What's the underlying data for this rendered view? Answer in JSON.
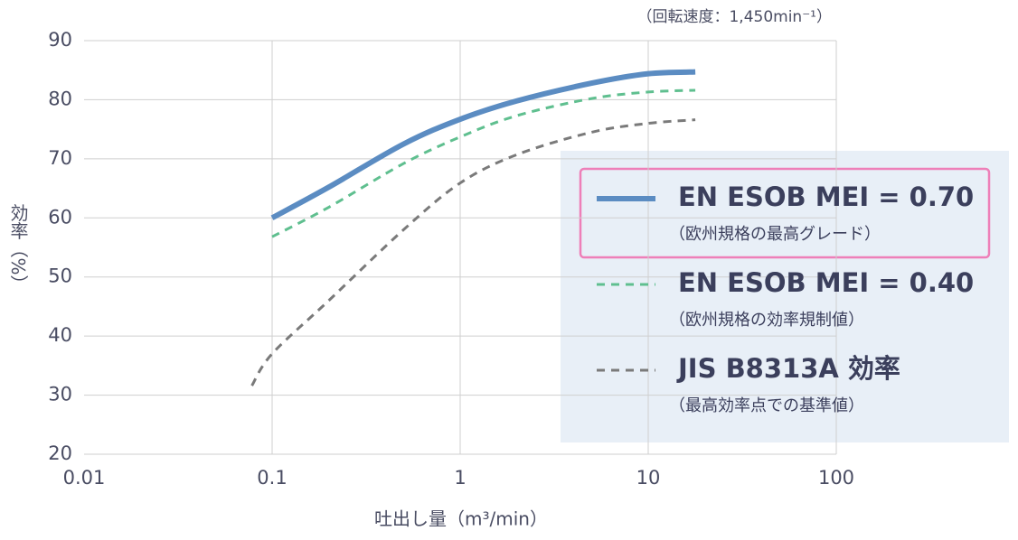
{
  "chart_data": {
    "type": "line",
    "annotation": "（回転速度：1,450min⁻¹）",
    "xlabel": "吐出し量（m³/min）",
    "ylabel": "効率（%）",
    "log_x": true,
    "grid": true,
    "xlim": [
      0.01,
      100
    ],
    "xticks": [
      0.01,
      0.1,
      1,
      10,
      100
    ],
    "ylim": [
      20,
      90
    ],
    "yticks": [
      20,
      30,
      40,
      50,
      60,
      70,
      80,
      90
    ],
    "legend": "right",
    "series": [
      {
        "name": "EN ESOB MEI = 0.70",
        "description": "（欧州規格の最高グレード）",
        "color": "#5b8cc2",
        "style": "solid",
        "width": 6,
        "x": [
          0.1,
          0.2,
          0.5,
          1,
          2,
          5,
          10,
          17.8
        ],
        "values": [
          60,
          65.2,
          72.5,
          76.7,
          79.8,
          82.8,
          84.4,
          84.7
        ]
      },
      {
        "name": "EN ESOB MEI = 0.40",
        "description": "（欧州規格の効率規制値）",
        "color": "#5fbf8f",
        "style": "dashed",
        "width": 3,
        "x": [
          0.1,
          0.2,
          0.5,
          1,
          2,
          5,
          10,
          17.8
        ],
        "values": [
          56.8,
          61.8,
          69.2,
          73.7,
          77.3,
          80.2,
          81.3,
          81.6
        ]
      },
      {
        "name": "JIS B8313A 効率",
        "description": "（最高効率点での基準値）",
        "color": "#7a7a7a",
        "style": "dashed",
        "width": 3,
        "x": [
          0.078,
          0.1,
          0.2,
          0.5,
          1,
          2,
          5,
          10,
          17.8
        ],
        "values": [
          31.6,
          37,
          46,
          58,
          65.9,
          70.7,
          74.5,
          76,
          76.6
        ]
      }
    ]
  }
}
